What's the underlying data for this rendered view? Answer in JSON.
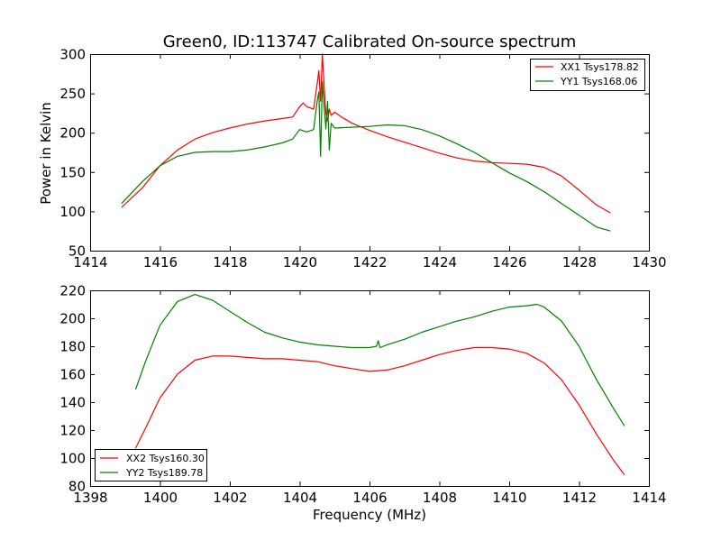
{
  "chart_data": [
    {
      "type": "line",
      "title": "Green0, ID:113747 Calibrated On-source spectrum",
      "xlabel": "",
      "ylabel": "Power in Kelvin",
      "xlim": [
        1414,
        1430
      ],
      "ylim": [
        50,
        300
      ],
      "xticks": [
        "1414",
        "1416",
        "1418",
        "1420",
        "1422",
        "1424",
        "1426",
        "1428",
        "1430"
      ],
      "yticks": [
        "50",
        "100",
        "150",
        "200",
        "250",
        "300"
      ],
      "grid": false,
      "legend_position": "top-right",
      "series": [
        {
          "name": "XX1 Tsys178.82",
          "color": "#ff0000",
          "x": [
            1414.9,
            1415.5,
            1416.0,
            1416.5,
            1417.0,
            1417.5,
            1418.0,
            1418.5,
            1419.0,
            1419.5,
            1419.8,
            1420.0,
            1420.1,
            1420.2,
            1420.4,
            1420.5,
            1420.55,
            1420.6,
            1420.65,
            1420.7,
            1420.75,
            1420.8,
            1420.85,
            1420.9,
            1421.0,
            1421.2,
            1421.5,
            1422.0,
            1422.5,
            1423.0,
            1423.5,
            1424.0,
            1424.5,
            1425.0,
            1425.5,
            1426.0,
            1426.5,
            1427.0,
            1427.5,
            1428.0,
            1428.5,
            1428.9
          ],
          "values": [
            105,
            130,
            158,
            178,
            192,
            200,
            206,
            211,
            215,
            218,
            220,
            233,
            238,
            233,
            230,
            262,
            279,
            240,
            300,
            260,
            225,
            215,
            230,
            222,
            226,
            220,
            212,
            203,
            195,
            188,
            181,
            174,
            168,
            164,
            162,
            161,
            160,
            156,
            145,
            127,
            108,
            98
          ]
        },
        {
          "name": "YY1 Tsys168.06",
          "color": "#008000",
          "x": [
            1414.9,
            1415.5,
            1416.0,
            1416.5,
            1417.0,
            1417.5,
            1418.0,
            1418.5,
            1419.0,
            1419.5,
            1419.8,
            1420.0,
            1420.2,
            1420.4,
            1420.5,
            1420.55,
            1420.6,
            1420.65,
            1420.7,
            1420.75,
            1420.8,
            1420.85,
            1420.9,
            1421.0,
            1421.5,
            1422.0,
            1422.5,
            1423.0,
            1423.5,
            1424.0,
            1424.5,
            1425.0,
            1425.5,
            1426.0,
            1426.5,
            1427.0,
            1427.5,
            1428.0,
            1428.5,
            1428.9
          ],
          "values": [
            110,
            138,
            158,
            170,
            175,
            176,
            176,
            178,
            182,
            187,
            192,
            204,
            201,
            204,
            240,
            252,
            170,
            265,
            235,
            205,
            240,
            178,
            212,
            206,
            207,
            208,
            210,
            209,
            204,
            196,
            186,
            175,
            162,
            149,
            138,
            125,
            110,
            95,
            80,
            75
          ]
        }
      ]
    },
    {
      "type": "line",
      "title": "",
      "xlabel": "Frequency (MHz)",
      "ylabel": "",
      "xlim": [
        1398,
        1414
      ],
      "ylim": [
        80,
        220
      ],
      "xticks": [
        "1398",
        "1400",
        "1402",
        "1404",
        "1406",
        "1408",
        "1410",
        "1412",
        "1414"
      ],
      "yticks": [
        "80",
        "100",
        "120",
        "140",
        "160",
        "180",
        "200",
        "220"
      ],
      "grid": false,
      "legend_position": "bottom-left",
      "series": [
        {
          "name": "XX2 Tsys160.30",
          "color": "#ff0000",
          "x": [
            1399.3,
            1399.6,
            1400.0,
            1400.5,
            1401.0,
            1401.5,
            1402.0,
            1402.5,
            1403.0,
            1403.5,
            1404.0,
            1404.5,
            1405.0,
            1405.5,
            1406.0,
            1406.5,
            1407.0,
            1407.5,
            1408.0,
            1408.5,
            1409.0,
            1409.5,
            1410.0,
            1410.5,
            1411.0,
            1411.5,
            1412.0,
            1412.5,
            1413.0,
            1413.3
          ],
          "values": [
            107,
            122,
            143,
            160,
            170,
            173,
            173,
            172,
            171,
            171,
            170,
            169,
            166,
            164,
            162,
            163,
            166,
            170,
            174,
            177,
            179,
            179,
            178,
            175,
            168,
            156,
            138,
            117,
            98,
            88
          ]
        },
        {
          "name": "YY2 Tsys189.78",
          "color": "#008000",
          "x": [
            1399.3,
            1399.6,
            1400.0,
            1400.5,
            1401.0,
            1401.5,
            1402.0,
            1402.5,
            1403.0,
            1403.5,
            1404.0,
            1404.5,
            1405.0,
            1405.5,
            1406.0,
            1406.2,
            1406.25,
            1406.3,
            1406.5,
            1407.0,
            1407.5,
            1408.0,
            1408.5,
            1409.0,
            1409.5,
            1410.0,
            1410.5,
            1410.8,
            1411.0,
            1411.5,
            1412.0,
            1412.5,
            1413.0,
            1413.3
          ],
          "values": [
            149,
            170,
            195,
            212,
            217,
            213,
            205,
            197,
            190,
            186,
            183,
            181,
            180,
            179,
            179,
            180,
            184,
            179,
            181,
            185,
            190,
            194,
            198,
            201,
            205,
            208,
            209,
            210,
            208,
            198,
            180,
            156,
            135,
            123
          ]
        }
      ]
    }
  ]
}
